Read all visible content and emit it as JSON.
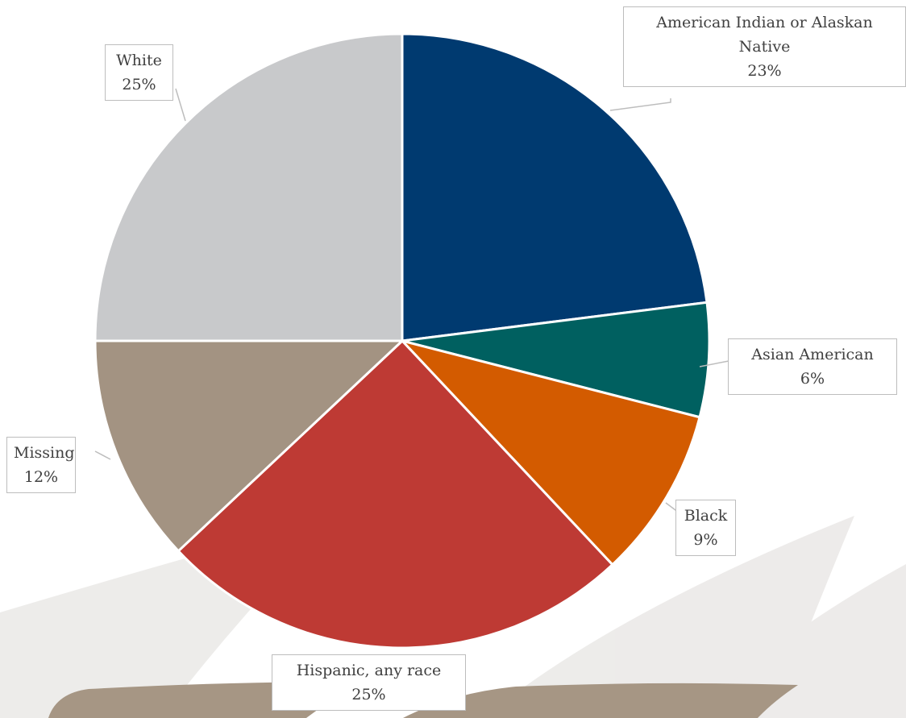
{
  "chart_data": {
    "type": "pie",
    "categories": [
      "American Indian or Alaskan Native",
      "Asian American",
      "Black",
      "Hispanic, any race",
      "Missing",
      "White"
    ],
    "values": [
      23,
      6,
      9,
      25,
      12,
      25
    ],
    "value_labels": [
      "23%",
      "6%",
      "9%",
      "25%",
      "12%",
      "25%"
    ],
    "colors": [
      "#003a70",
      "#006060",
      "#d35b00",
      "#be3a34",
      "#a39382",
      "#c8c9cb"
    ]
  }
}
